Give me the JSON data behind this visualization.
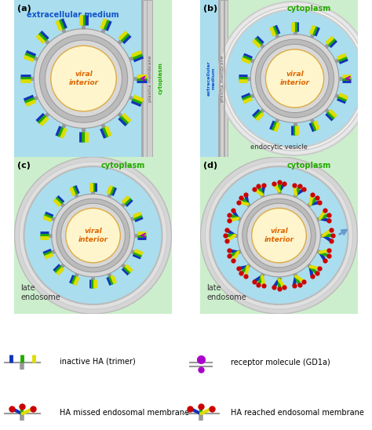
{
  "bg_blue": "#aaddee",
  "bg_green": "#cceecc",
  "bg_white": "#ffffff",
  "viral_interior": "#fef5cc",
  "viral_interior_edge": "#ddaa44",
  "ring_gray_light": "#d8d8d8",
  "ring_gray_mid": "#bbbbbb",
  "ring_gray_dark": "#999999",
  "spike_blue": "#1133bb",
  "spike_green": "#22aa00",
  "spike_yellow": "#dddd00",
  "spike_red": "#cc0000",
  "membrane_gray": "#cccccc",
  "membrane_dark": "#aaaaaa",
  "receptor_purple": "#aa00cc",
  "text_blue": "#1155cc",
  "text_green": "#22aa00",
  "text_orange": "#dd6600",
  "text_dark": "#333333",
  "n_spikes": 16,
  "legend_inactive_HA": "inactive HA (trimer)",
  "legend_receptor": "receptor molecule (GD1a)",
  "legend_missed": "HA missed endosomal membrane",
  "legend_reached": "HA reached endosomal membrane"
}
